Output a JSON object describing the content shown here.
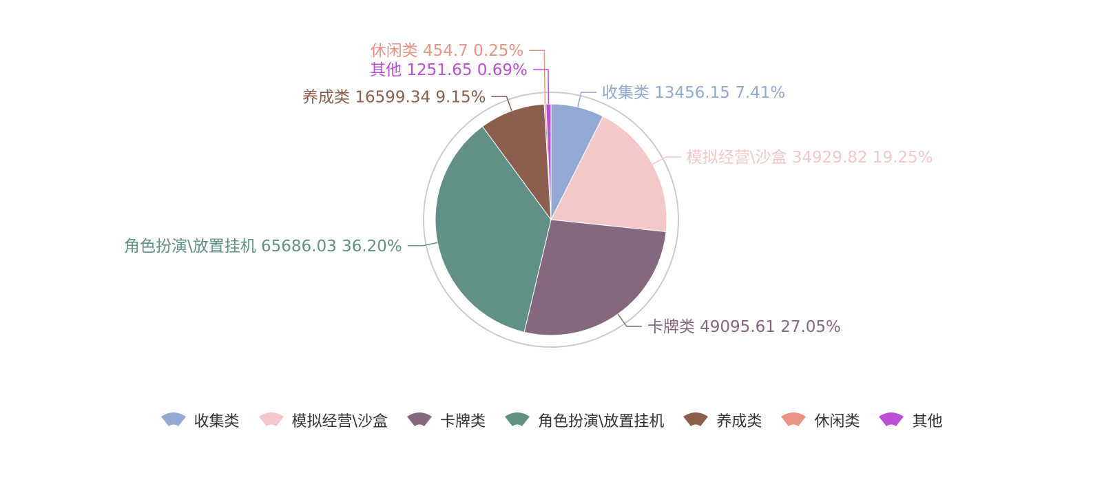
{
  "chart_data": {
    "type": "pie",
    "slices": [
      {
        "label": "收集类",
        "value": 13456.15,
        "percent": "7.41%",
        "color": "#93a8d2"
      },
      {
        "label": "模拟经营\\沙盒",
        "value": 34929.82,
        "percent": "19.25%",
        "color": "#f4c8c8"
      },
      {
        "label": "卡牌类",
        "value": 49095.61,
        "percent": "27.05%",
        "color": "#83687f"
      },
      {
        "label": "角色扮演\\放置挂机",
        "value": 65686.03,
        "percent": "36.20%",
        "color": "#619087"
      },
      {
        "label": "养成类",
        "value": 16599.34,
        "percent": "9.15%",
        "color": "#8b5e4e"
      },
      {
        "label": "休闲类",
        "value": 454.7,
        "percent": "0.25%",
        "color": "#ec9484"
      },
      {
        "label": "其他",
        "value": 1251.65,
        "percent": "0.69%",
        "color": "#bb4fd6"
      }
    ],
    "legend_position": "bottom",
    "ring_color": "#cccccc"
  }
}
